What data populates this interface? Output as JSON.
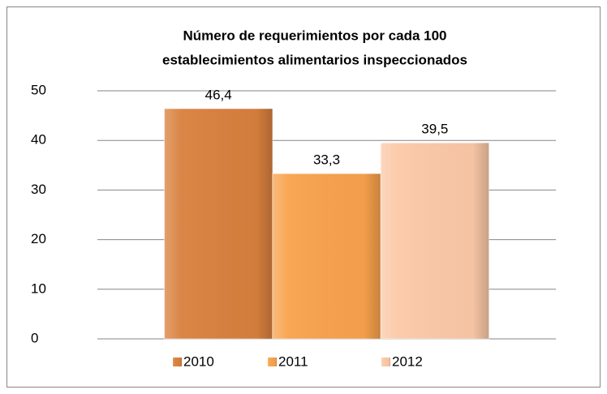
{
  "chart_data": {
    "type": "bar",
    "title": [
      "Número de requerimientos por cada 100",
      "establecimientos alimentarios inspeccionados"
    ],
    "categories": [
      null
    ],
    "series": [
      {
        "name": "2010",
        "color": "#d9803e",
        "values": [
          46.4
        ],
        "value_labels": [
          "46,4"
        ]
      },
      {
        "name": "2011",
        "color": "#f9a24c",
        "values": [
          33.3
        ],
        "value_labels": [
          "33,3"
        ]
      },
      {
        "name": "2012",
        "color": "#fcc9a8",
        "values": [
          39.5
        ],
        "value_labels": [
          "39,5"
        ]
      }
    ],
    "ylim": [
      0,
      50
    ],
    "yticks": [
      0,
      10,
      20,
      30,
      40,
      50
    ],
    "grid": true,
    "legend": "bottom"
  }
}
